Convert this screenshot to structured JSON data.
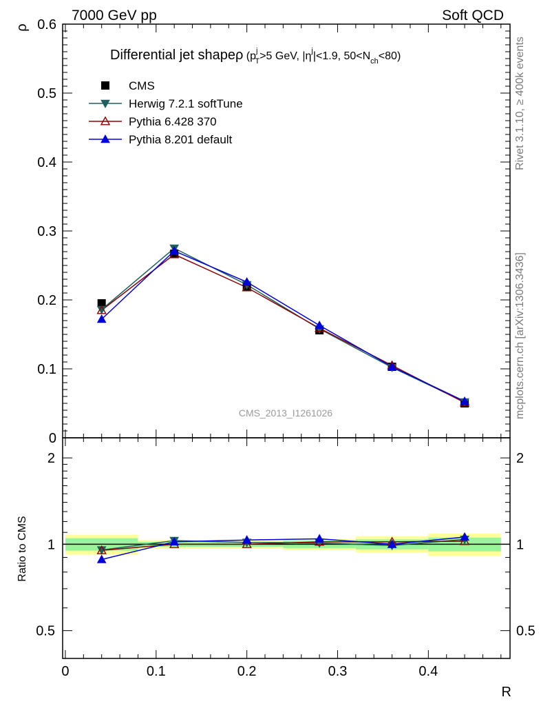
{
  "header": {
    "left": "7000 GeV pp",
    "right": "Soft QCD"
  },
  "side_labels": {
    "rivet": "Rivet 3.1.10, ≥ 400k events",
    "mcplots": "mcplots.cern.ch [arXiv:1306.3436]"
  },
  "watermark": "CMS_2013_I1261026",
  "title": {
    "main": "Differential jet shapeρ",
    "paren_open": " (p",
    "sup_j1": "j",
    "sub_T": "T",
    "mid1": ">5 GeV, |η",
    "sup_j2": "j",
    "mid2": "|<1.9, 50<N",
    "sub_ch": "ch",
    "end": "<80)"
  },
  "axes": {
    "ylabel_main": "ρ",
    "ylabel_ratio": "Ratio to CMS",
    "xlabel": "R",
    "main_y_ticks": [
      {
        "v": 0.1,
        "label": "0.1"
      },
      {
        "v": 0.2,
        "label": "0.2"
      },
      {
        "v": 0.3,
        "label": "0.3"
      },
      {
        "v": 0.4,
        "label": "0.4"
      },
      {
        "v": 0.5,
        "label": "0.5"
      },
      {
        "v": 0.6,
        "label": "0.6"
      }
    ],
    "main_y_zero_label": "0",
    "ratio_y_ticks": [
      {
        "v": 0.5,
        "label": "0.5"
      },
      {
        "v": 1,
        "label": "1"
      },
      {
        "v": 2,
        "label": "2"
      }
    ],
    "x_ticks": [
      {
        "v": 0,
        "label": "0"
      },
      {
        "v": 0.1,
        "label": "0.1"
      },
      {
        "v": 0.2,
        "label": "0.2"
      },
      {
        "v": 0.3,
        "label": "0.3"
      },
      {
        "v": 0.4,
        "label": "0.4"
      }
    ]
  },
  "chart_data": {
    "type": "line",
    "xlim": [
      -0.003,
      0.49
    ],
    "ylim": [
      0,
      0.6
    ],
    "ratio_ylim": [
      0.4,
      2.35
    ],
    "ratio_log": true,
    "grid": false,
    "legend_placement": "top-left",
    "bin_edges": [
      0,
      0.08,
      0.16,
      0.24,
      0.32,
      0.4,
      0.48
    ],
    "x": [
      0.04,
      0.12,
      0.2,
      0.28,
      0.36,
      0.44
    ],
    "cms": {
      "name": "CMS",
      "values": [
        0.195,
        0.267,
        0.219,
        0.156,
        0.103,
        0.05
      ],
      "band_green": [
        0.05,
        0.02,
        0.02,
        0.03,
        0.04,
        0.055
      ],
      "band_yellow": [
        0.08,
        0.035,
        0.035,
        0.045,
        0.065,
        0.09
      ]
    },
    "series": [
      {
        "name": "Herwig 7.2.1 softTune",
        "color": "#1f5f5f",
        "marker": "triangle-down-filled",
        "values": [
          0.186,
          0.275,
          0.222,
          0.158,
          0.102,
          0.052
        ],
        "ratio": [
          0.955,
          1.03,
          1.015,
          1.01,
          0.99,
          1.04
        ]
      },
      {
        "name": "Pythia 6.428 370",
        "color": "#8b0000",
        "marker": "triangle-up-open",
        "values": [
          0.185,
          0.266,
          0.218,
          0.159,
          0.105,
          0.051
        ],
        "ratio": [
          0.952,
          1.0,
          1.0,
          1.02,
          1.02,
          1.025
        ]
      },
      {
        "name": "Pythia 8.201 default",
        "color": "#0000dd",
        "marker": "triangle-up-filled",
        "values": [
          0.172,
          0.271,
          0.226,
          0.163,
          0.103,
          0.053
        ],
        "ratio": [
          0.885,
          1.02,
          1.035,
          1.045,
          1.0,
          1.06
        ]
      }
    ]
  }
}
